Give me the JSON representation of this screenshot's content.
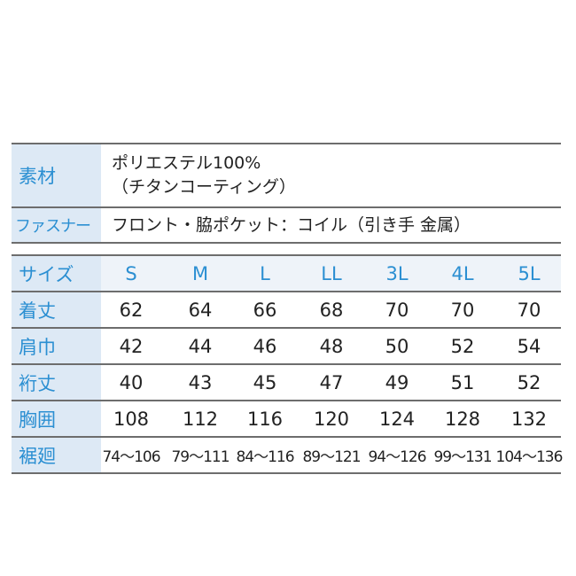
{
  "spec": {
    "material_label": "素材",
    "material_line1": "ポリエステル100%",
    "material_line2": "（チタンコーティング）",
    "fastener_label": "ファスナー",
    "fastener_value": "フロント・脇ポケット：コイル（引き手 金属）"
  },
  "size_table": {
    "header_label": "サイズ",
    "sizes": [
      "S",
      "M",
      "L",
      "LL",
      "3L",
      "4L",
      "5L"
    ],
    "rows": [
      {
        "label": "着丈",
        "values": [
          "62",
          "64",
          "66",
          "68",
          "70",
          "70",
          "70"
        ]
      },
      {
        "label": "肩巾",
        "values": [
          "42",
          "44",
          "46",
          "48",
          "50",
          "52",
          "54"
        ]
      },
      {
        "label": "裄丈",
        "values": [
          "40",
          "43",
          "45",
          "47",
          "49",
          "51",
          "52"
        ]
      },
      {
        "label": "胸囲",
        "values": [
          "108",
          "112",
          "116",
          "120",
          "124",
          "128",
          "132"
        ]
      },
      {
        "label": "裾廻",
        "values": [
          "74～106",
          "79～111",
          "84～116",
          "89～121",
          "94～126",
          "99～131",
          "104～136"
        ]
      }
    ]
  },
  "colors": {
    "label_text": "#2b8fd2",
    "label_bg": "#dde9f5",
    "rule": "#6d6d6d"
  }
}
